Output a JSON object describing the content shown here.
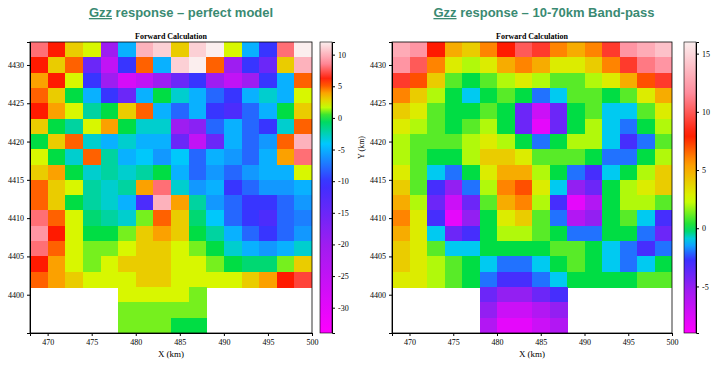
{
  "chart_data": [
    {
      "type": "heatmap",
      "title": "Gzz response – perfect model",
      "subtitle": "Forward Calculation",
      "x_label": "X (km)",
      "y_label": "Y (km)",
      "xlim": [
        468,
        500
      ],
      "xticks": [
        470,
        475,
        480,
        485,
        490,
        495,
        500
      ],
      "ylim": [
        4395,
        4433
      ],
      "yticks": [
        4400,
        4405,
        4410,
        4415,
        4420,
        4425,
        4430
      ],
      "x_edges": [
        468,
        470,
        472,
        474,
        476,
        478,
        480,
        482,
        484,
        486,
        488,
        490,
        492,
        494,
        496,
        498,
        500
      ],
      "y_edges": [
        4433,
        4431,
        4429,
        4427,
        4425,
        4423,
        4421,
        4419,
        4417,
        4415,
        4413,
        4411,
        4409,
        4407,
        4405,
        4403,
        4401,
        4399,
        4397,
        4395
      ],
      "cells": [
        [
          8,
          6,
          3,
          2,
          -20,
          -5,
          10,
          11,
          3,
          11,
          12,
          2,
          -5,
          -10,
          8,
          12
        ],
        [
          6,
          3,
          5,
          -15,
          -25,
          -10,
          5,
          -5,
          11,
          12,
          5,
          -20,
          -10,
          -15,
          3,
          10
        ],
        [
          4,
          6,
          2,
          -10,
          -20,
          -28,
          -25,
          -20,
          -15,
          -10,
          -20,
          -25,
          -20,
          -10,
          -5,
          5
        ],
        [
          5,
          3,
          0,
          -5,
          -10,
          -15,
          -5,
          0,
          -3,
          -5,
          -8,
          -10,
          -5,
          -3,
          -5,
          2
        ],
        [
          6,
          4,
          2,
          -2,
          0,
          3,
          5,
          -5,
          -8,
          -5,
          -10,
          -12,
          -8,
          -5,
          0,
          3
        ],
        [
          3,
          0,
          -2,
          2,
          4,
          0,
          -3,
          -3,
          -20,
          -18,
          -8,
          -5,
          -8,
          -10,
          -3,
          5
        ],
        [
          0,
          3,
          5,
          -3,
          -5,
          -3,
          -5,
          -5,
          -15,
          -25,
          -15,
          -5,
          -8,
          -6,
          5,
          10
        ],
        [
          2,
          0,
          -3,
          5,
          -2,
          -5,
          -4,
          -6,
          -4,
          -8,
          -5,
          -6,
          -8,
          -5,
          4,
          8
        ],
        [
          3,
          4,
          0,
          -3,
          -2,
          -3,
          -2,
          0,
          -5,
          -8,
          -6,
          -8,
          -6,
          -5,
          -5,
          2
        ],
        [
          5,
          3,
          2,
          -2,
          -3,
          -2,
          4,
          8,
          -3,
          -6,
          -5,
          -10,
          -8,
          -6,
          -6,
          -5
        ],
        [
          5,
          3,
          0,
          -2,
          -3,
          -5,
          -12,
          10,
          4,
          -2,
          -6,
          -8,
          -10,
          -10,
          -8,
          -6
        ],
        [
          8,
          5,
          2,
          -1,
          -2,
          -3,
          1,
          5,
          3,
          -1,
          -4,
          -8,
          -10,
          -12,
          -8,
          -7
        ],
        [
          9,
          6,
          2,
          0,
          0,
          1,
          3,
          4,
          3,
          0,
          -2,
          -5,
          -8,
          -10,
          -8,
          -6
        ],
        [
          8,
          5,
          2,
          1,
          1,
          2,
          3,
          3,
          2,
          1,
          0,
          -3,
          -5,
          -6,
          -5,
          -3
        ],
        [
          6,
          4,
          2,
          1,
          2,
          3,
          3,
          3,
          2,
          2,
          1,
          0,
          -1,
          -1,
          1,
          3
        ],
        [
          5,
          4,
          3,
          2,
          2,
          2,
          3,
          3,
          2,
          2,
          2,
          2,
          3,
          4,
          6,
          7
        ],
        [
          null,
          null,
          null,
          null,
          null,
          2,
          2,
          2,
          2,
          1,
          null,
          null,
          null,
          null,
          null,
          null
        ],
        [
          null,
          null,
          null,
          null,
          null,
          1,
          1,
          1,
          1,
          1,
          null,
          null,
          null,
          null,
          null,
          null
        ],
        [
          null,
          null,
          null,
          null,
          null,
          1,
          1,
          1,
          0,
          0,
          null,
          null,
          null,
          null,
          null,
          null
        ]
      ],
      "colorbar_range": [
        -34,
        12
      ],
      "colorbar_ticks": [
        -30,
        -25,
        -20,
        -15,
        -10,
        -5,
        0,
        5,
        10
      ]
    },
    {
      "type": "heatmap",
      "title": "Gzz response – 10-70km Band-pass",
      "subtitle": "Forward Calculation",
      "x_label": "X (km)",
      "xlim": [
        468,
        500
      ],
      "xticks": [
        470,
        475,
        480,
        485,
        490,
        495,
        500
      ],
      "ylim": [
        4395,
        4433
      ],
      "yticks": [
        4400,
        4405,
        4410,
        4415,
        4420,
        4425,
        4430
      ],
      "x_edges": [
        468,
        470,
        472,
        474,
        476,
        478,
        480,
        482,
        484,
        486,
        488,
        490,
        492,
        494,
        496,
        498,
        500
      ],
      "y_edges": [
        4433,
        4431,
        4429,
        4427,
        4425,
        4423,
        4421,
        4419,
        4417,
        4415,
        4413,
        4411,
        4409,
        4407,
        4405,
        4403,
        4401,
        4399,
        4397,
        4395
      ],
      "cells": [
        [
          13,
          12,
          8,
          5,
          4,
          6,
          8,
          10,
          9,
          6,
          5,
          6,
          9,
          12,
          13,
          14
        ],
        [
          12,
          10,
          6,
          3,
          2,
          3,
          5,
          6,
          5,
          3,
          3,
          4,
          6,
          9,
          11,
          12
        ],
        [
          9,
          7,
          4,
          1,
          0,
          1,
          2,
          3,
          2,
          1,
          1,
          2,
          3,
          5,
          7,
          9
        ],
        [
          6,
          4,
          2,
          0,
          -1,
          0,
          1,
          0,
          -2,
          -1,
          1,
          1,
          0,
          1,
          3,
          5
        ],
        [
          4,
          3,
          1,
          0,
          0,
          1,
          0,
          -4,
          -7,
          -4,
          0,
          1,
          -1,
          -1,
          1,
          3
        ],
        [
          3,
          2,
          1,
          0,
          1,
          2,
          0,
          -4,
          -8,
          -4,
          0,
          2,
          -1,
          -2,
          0,
          2
        ],
        [
          2,
          1,
          1,
          1,
          2,
          3,
          2,
          0,
          -2,
          0,
          2,
          2,
          -1,
          -3,
          -2,
          1
        ],
        [
          2,
          1,
          0,
          0,
          2,
          4,
          4,
          3,
          1,
          1,
          1,
          0,
          -2,
          -2,
          0,
          2
        ],
        [
          3,
          1,
          -1,
          -2,
          0,
          3,
          5,
          5,
          2,
          0,
          -2,
          -3,
          -1,
          0,
          2,
          4
        ],
        [
          4,
          1,
          -3,
          -5,
          -2,
          2,
          6,
          7,
          3,
          -1,
          -5,
          -4,
          0,
          2,
          3,
          4
        ],
        [
          5,
          2,
          -4,
          -7,
          -4,
          1,
          5,
          6,
          2,
          -3,
          -8,
          -6,
          0,
          2,
          2,
          1
        ],
        [
          6,
          3,
          -3,
          -8,
          -5,
          0,
          3,
          4,
          1,
          -2,
          -6,
          -5,
          0,
          1,
          -1,
          -3
        ],
        [
          5,
          3,
          -1,
          -4,
          -3,
          0,
          2,
          2,
          1,
          0,
          -2,
          -2,
          0,
          0,
          -2,
          -4
        ],
        [
          4,
          3,
          1,
          -1,
          -1,
          0,
          0,
          0,
          0,
          1,
          1,
          0,
          -1,
          -2,
          -3,
          -2
        ],
        [
          4,
          3,
          2,
          1,
          0,
          -1,
          -2,
          -2,
          -1,
          0,
          1,
          0,
          -1,
          -2,
          -1,
          0
        ],
        [
          3,
          3,
          2,
          1,
          0,
          -2,
          -3,
          -3,
          -2,
          -1,
          0,
          0,
          0,
          0,
          1,
          1
        ],
        [
          null,
          null,
          null,
          null,
          null,
          -4,
          -5,
          -5,
          -4,
          -3,
          null,
          null,
          null,
          null,
          null,
          null
        ],
        [
          null,
          null,
          null,
          null,
          null,
          -5,
          -7,
          -7,
          -6,
          -5,
          null,
          null,
          null,
          null,
          null,
          null
        ],
        [
          null,
          null,
          null,
          null,
          null,
          -6,
          -8,
          -8,
          -7,
          -6,
          null,
          null,
          null,
          null,
          null,
          null
        ]
      ],
      "colorbar_range": [
        -9,
        16
      ],
      "colorbar_ticks": [
        -5,
        0,
        5,
        10,
        15
      ]
    }
  ]
}
